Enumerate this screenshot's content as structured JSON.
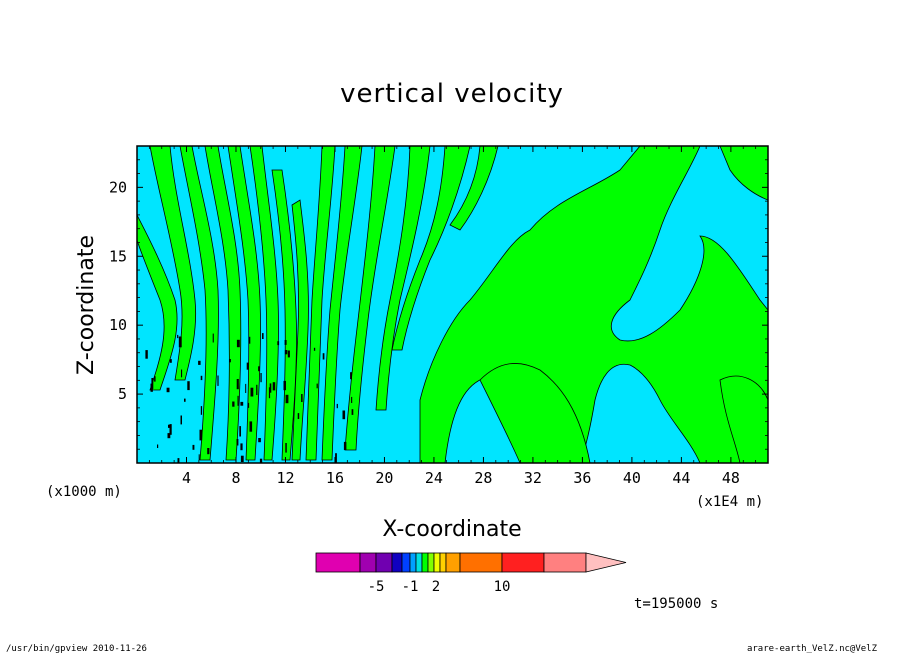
{
  "chart_data": {
    "type": "heatmap",
    "title": "vertical velocity",
    "xlabel": "X-coordinate",
    "ylabel": "Z-coordinate",
    "x_unit_left": "(x1000 m)",
    "x_unit_right": "(x1E4 m)",
    "xlim": [
      0,
      51
    ],
    "ylim": [
      0,
      23
    ],
    "x_ticks": [
      4,
      8,
      12,
      16,
      20,
      24,
      28,
      32,
      36,
      40,
      44,
      48
    ],
    "y_ticks": [
      5,
      10,
      15,
      20
    ],
    "grid": false,
    "field_colors": {
      "negative": "#00e5ff",
      "positive": "#00ff00",
      "strong": "#000000"
    },
    "colorbar": {
      "colors": [
        "#e000b0",
        "#a000b0",
        "#7000b0",
        "#1000c0",
        "#0040ff",
        "#00a0ff",
        "#00e0e0",
        "#00ff00",
        "#80ff00",
        "#f0ff00",
        "#ffd000",
        "#ffa000",
        "#ff7000",
        "#ff2020",
        "#ff8080",
        "#ffc0c0"
      ],
      "labels": [
        "-5",
        "-1",
        "2",
        "10"
      ]
    },
    "annotation": "t=195000 s"
  },
  "footer": {
    "left": "/usr/bin/gpview  2010-11-26",
    "right": "arare-earth_VelZ.nc@VelZ"
  }
}
